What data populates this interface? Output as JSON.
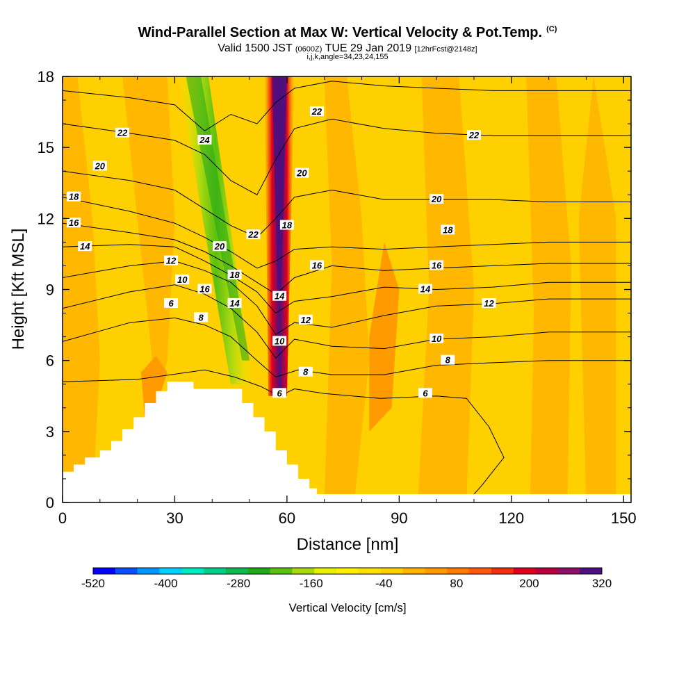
{
  "header": {
    "title": "Wind-Parallel Section at Max W: Vertical Velocity & Pot.Temp.",
    "copyright": "(C)",
    "valid_prefix": "Valid 1500 JST",
    "valid_utc": "(0600Z)",
    "valid_date": "TUE 29 Jan 2019",
    "forecast": "[12hrFcst@2148z]",
    "indices": "i,j,k,angle=34,23,24,155"
  },
  "colors": {
    "terrain": "#ffffff",
    "background": "#ffd000",
    "contour_line": "#000000"
  },
  "chart_data": {
    "type": "heatmap",
    "xlabel": "Distance [nm]",
    "ylabel": "Height [Kft MSL]",
    "xlim": [
      0,
      152
    ],
    "ylim": [
      0,
      18
    ],
    "x_ticks": [
      0,
      30,
      60,
      90,
      120,
      150
    ],
    "x_tick_labels": [
      "0",
      "30",
      "60",
      "90",
      "120",
      "150"
    ],
    "y_ticks": [
      0,
      3,
      6,
      9,
      12,
      15,
      18
    ],
    "y_tick_labels": [
      "0",
      "3",
      "6",
      "9",
      "12",
      "15",
      "18"
    ],
    "colorbar": {
      "title": "Vertical Velocity [cm/s]",
      "min": -520,
      "max": 320,
      "step": 40,
      "tick_values": [
        -520,
        -400,
        -280,
        -160,
        -40,
        80,
        200,
        320
      ],
      "tick_labels": [
        "-520",
        "-400",
        "-280",
        "-160",
        "-40",
        "80",
        "200",
        "320"
      ],
      "colors": [
        "#0000ff",
        "#0a50ff",
        "#0096ff",
        "#00d0ff",
        "#00e8c0",
        "#00d08a",
        "#10b850",
        "#22a818",
        "#5cc010",
        "#a8d810",
        "#e8f000",
        "#fff000",
        "#ffe000",
        "#ffd000",
        "#ffb400",
        "#ff9a00",
        "#ff7a00",
        "#ff5810",
        "#f03010",
        "#e00020",
        "#b8003c",
        "#8c1066",
        "#4c1080"
      ]
    },
    "vertical_velocity_features": [
      {
        "name": "downdraft",
        "x_center_at_5kft": 50,
        "x_center_at_18kft": 31,
        "value_range": [
          -280,
          -160
        ]
      },
      {
        "name": "updraft",
        "x_center_at_5kft": 58,
        "x_center_at_18kft": 58,
        "value_range": [
          240,
          320
        ]
      }
    ],
    "terrain_kft": [
      [
        0,
        1.3
      ],
      [
        3,
        1.3
      ],
      [
        3,
        1.6
      ],
      [
        6,
        1.6
      ],
      [
        6,
        1.9
      ],
      [
        10,
        1.9
      ],
      [
        10,
        2.2
      ],
      [
        13,
        2.2
      ],
      [
        13,
        2.6
      ],
      [
        16,
        2.6
      ],
      [
        16,
        3.1
      ],
      [
        19,
        3.1
      ],
      [
        19,
        3.6
      ],
      [
        22,
        3.6
      ],
      [
        22,
        4.2
      ],
      [
        25,
        4.2
      ],
      [
        25,
        4.7
      ],
      [
        28,
        4.7
      ],
      [
        28,
        5.1
      ],
      [
        35,
        5.1
      ],
      [
        35,
        4.8
      ],
      [
        48,
        4.8
      ],
      [
        48,
        4.2
      ],
      [
        51,
        4.2
      ],
      [
        51,
        3.6
      ],
      [
        54,
        3.6
      ],
      [
        54,
        3.0
      ],
      [
        57,
        3.0
      ],
      [
        57,
        2.2
      ],
      [
        60,
        2.2
      ],
      [
        60,
        1.6
      ],
      [
        63,
        1.6
      ],
      [
        63,
        1.0
      ],
      [
        66,
        1.0
      ],
      [
        66,
        0.6
      ],
      [
        68,
        0.6
      ],
      [
        68,
        0.35
      ],
      [
        152,
        0.35
      ],
      [
        152,
        0
      ],
      [
        0,
        0
      ]
    ],
    "potential_temperature_contours": [
      {
        "label": "6",
        "points": [
          [
            0,
            5.1
          ],
          [
            20,
            5.2
          ],
          [
            38,
            5.6
          ],
          [
            46,
            5.3
          ],
          [
            53,
            4.9
          ],
          [
            58,
            4.5
          ],
          [
            62,
            4.8
          ],
          [
            70,
            4.6
          ],
          [
            85,
            4.4
          ],
          [
            100,
            4.5
          ],
          [
            108,
            4.4
          ],
          [
            114,
            3.2
          ],
          [
            118,
            1.9
          ],
          [
            112,
            0.7
          ],
          [
            110,
            0.35
          ]
        ],
        "label_at": [
          [
            29,
            8.4
          ],
          [
            58,
            4.6
          ],
          [
            97,
            4.6
          ]
        ]
      },
      {
        "label": "8",
        "points": [
          [
            0,
            6.8
          ],
          [
            18,
            7.6
          ],
          [
            30,
            7.8
          ],
          [
            38,
            7.5
          ],
          [
            45,
            7.0
          ],
          [
            52,
            6.0
          ],
          [
            57,
            5.3
          ],
          [
            63,
            5.6
          ],
          [
            72,
            5.4
          ],
          [
            86,
            5.4
          ],
          [
            100,
            5.8
          ],
          [
            114,
            5.9
          ],
          [
            130,
            6.0
          ],
          [
            152,
            6.0
          ]
        ],
        "label_at": [
          [
            37,
            7.8
          ],
          [
            65,
            5.5
          ],
          [
            103,
            6.0
          ]
        ]
      },
      {
        "label": "10",
        "points": [
          [
            0,
            8.2
          ],
          [
            18,
            8.9
          ],
          [
            30,
            9.2
          ],
          [
            38,
            8.8
          ],
          [
            45,
            8.2
          ],
          [
            52,
            7.2
          ],
          [
            57,
            6.1
          ],
          [
            62,
            6.9
          ],
          [
            72,
            6.6
          ],
          [
            86,
            6.5
          ],
          [
            100,
            6.9
          ],
          [
            115,
            7.0
          ],
          [
            130,
            7.2
          ],
          [
            152,
            7.2
          ]
        ],
        "label_at": [
          [
            32,
            9.4
          ],
          [
            58,
            6.8
          ],
          [
            100,
            6.9
          ]
        ]
      },
      {
        "label": "12",
        "points": [
          [
            0,
            9.5
          ],
          [
            18,
            10.0
          ],
          [
            30,
            10.2
          ],
          [
            38,
            9.8
          ],
          [
            45,
            9.3
          ],
          [
            52,
            8.3
          ],
          [
            57,
            7.1
          ],
          [
            62,
            7.6
          ],
          [
            72,
            7.4
          ],
          [
            86,
            7.9
          ],
          [
            100,
            8.3
          ],
          [
            115,
            8.4
          ],
          [
            130,
            8.6
          ],
          [
            152,
            8.6
          ]
        ],
        "label_at": [
          [
            29,
            10.2
          ],
          [
            65,
            7.7
          ],
          [
            114,
            8.4
          ]
        ]
      },
      {
        "label": "14",
        "points": [
          [
            0,
            10.8
          ],
          [
            18,
            10.9
          ],
          [
            30,
            10.8
          ],
          [
            38,
            10.2
          ],
          [
            45,
            9.6
          ],
          [
            52,
            8.9
          ],
          [
            57,
            8.0
          ],
          [
            62,
            8.5
          ],
          [
            72,
            8.7
          ],
          [
            86,
            9.1
          ],
          [
            100,
            9.0
          ],
          [
            115,
            9.1
          ],
          [
            130,
            9.3
          ],
          [
            152,
            9.3
          ]
        ],
        "label_at": [
          [
            6,
            10.8
          ],
          [
            46,
            8.4
          ],
          [
            58,
            8.7
          ],
          [
            97,
            9.0
          ]
        ]
      },
      {
        "label": "16",
        "points": [
          [
            0,
            11.8
          ],
          [
            18,
            11.4
          ],
          [
            30,
            11.1
          ],
          [
            38,
            10.6
          ],
          [
            45,
            10.0
          ],
          [
            52,
            9.3
          ],
          [
            57,
            8.8
          ],
          [
            62,
            9.5
          ],
          [
            72,
            10.0
          ],
          [
            86,
            9.8
          ],
          [
            100,
            9.9
          ],
          [
            115,
            10.0
          ],
          [
            130,
            10.1
          ],
          [
            152,
            10.1
          ]
        ],
        "label_at": [
          [
            3,
            11.8
          ],
          [
            38,
            9.0
          ],
          [
            68,
            10.0
          ],
          [
            100,
            10.0
          ]
        ]
      },
      {
        "label": "18",
        "points": [
          [
            0,
            12.9
          ],
          [
            18,
            12.3
          ],
          [
            30,
            11.8
          ],
          [
            38,
            11.2
          ],
          [
            45,
            10.6
          ],
          [
            52,
            9.9
          ],
          [
            57,
            10.2
          ],
          [
            62,
            10.7
          ],
          [
            72,
            10.8
          ],
          [
            86,
            10.7
          ],
          [
            100,
            10.8
          ],
          [
            115,
            10.9
          ],
          [
            130,
            11.0
          ],
          [
            152,
            11.0
          ]
        ],
        "label_at": [
          [
            3,
            12.9
          ],
          [
            46,
            9.6
          ],
          [
            60,
            11.7
          ],
          [
            103,
            11.5
          ]
        ]
      },
      {
        "label": "20",
        "points": [
          [
            0,
            14.0
          ],
          [
            18,
            13.6
          ],
          [
            30,
            13.2
          ],
          [
            38,
            12.4
          ],
          [
            45,
            11.7
          ],
          [
            52,
            11.2
          ],
          [
            57,
            12.0
          ],
          [
            62,
            12.9
          ],
          [
            72,
            13.2
          ],
          [
            86,
            12.8
          ],
          [
            100,
            12.8
          ],
          [
            115,
            12.8
          ],
          [
            130,
            12.7
          ],
          [
            152,
            12.7
          ]
        ],
        "label_at": [
          [
            10,
            14.2
          ],
          [
            42,
            10.8
          ],
          [
            64,
            13.9
          ],
          [
            100,
            12.8
          ]
        ]
      },
      {
        "label": "22",
        "points": [
          [
            0,
            16.0
          ],
          [
            18,
            15.6
          ],
          [
            30,
            15.3
          ],
          [
            38,
            14.7
          ],
          [
            45,
            13.6
          ],
          [
            52,
            13.0
          ],
          [
            57,
            14.5
          ],
          [
            62,
            15.8
          ],
          [
            72,
            16.2
          ],
          [
            86,
            15.8
          ],
          [
            100,
            15.6
          ],
          [
            115,
            15.5
          ],
          [
            130,
            15.5
          ],
          [
            152,
            15.5
          ]
        ],
        "label_at": [
          [
            16,
            15.6
          ],
          [
            51,
            11.3
          ],
          [
            68,
            16.5
          ],
          [
            110,
            15.5
          ]
        ]
      },
      {
        "label": "24",
        "points": [
          [
            0,
            17.4
          ],
          [
            18,
            17.1
          ],
          [
            30,
            16.8
          ],
          [
            38,
            15.7
          ],
          [
            45,
            16.4
          ],
          [
            52,
            16.0
          ],
          [
            57,
            16.9
          ],
          [
            62,
            17.5
          ],
          [
            72,
            17.8
          ],
          [
            86,
            17.6
          ],
          [
            100,
            17.5
          ],
          [
            115,
            17.4
          ],
          [
            130,
            17.4
          ],
          [
            152,
            17.4
          ]
        ],
        "label_at": [
          [
            38,
            15.3
          ]
        ]
      }
    ]
  }
}
